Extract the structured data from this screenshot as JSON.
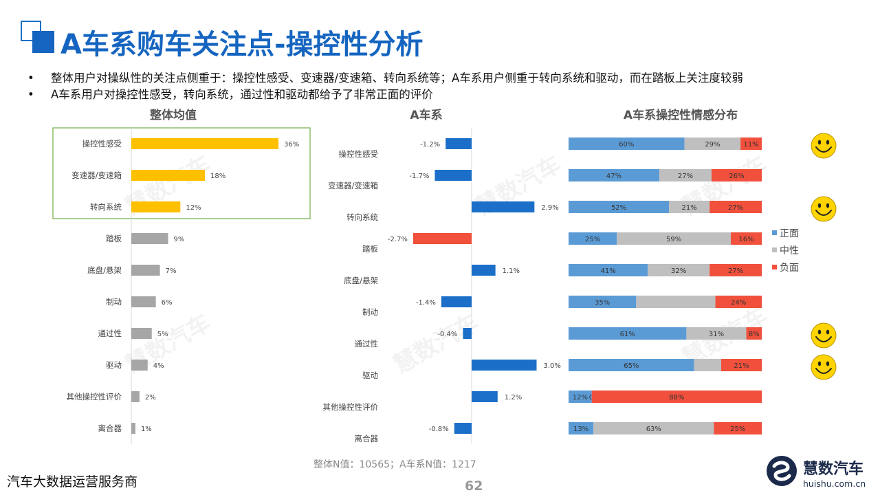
{
  "title": "A车系购车关注点-操控性分析",
  "bullets": [
    "整体用户对操纵性的关注点侧重于：操控性感受、变速器/变速箱、转向系统等；A车系用户侧重于转向系统和驱动，而在踏板上关注度较弱",
    "A车系用户对操控性感受，转向系统，通过性和驱动都给予了非常正面的评价"
  ],
  "chart_titles": {
    "overall": "整体均值",
    "series_a": "A车系",
    "sentiment": "A车系操控性情感分布"
  },
  "footer": {
    "note": "整体N值：10565；A车系N值：1217",
    "left_text": "汽车大数据运营服务商",
    "page_number": "62",
    "brand_name": "慧数汽车",
    "brand_url": "huishu.com.cn"
  },
  "watermark": "慧数汽车",
  "colors": {
    "title_blue": "#1565c0",
    "highlight_bar": "#ffc000",
    "gray_bar": "#a6a6a6",
    "diff_positive": "#1c6fc8",
    "diff_negative": "#f0503c",
    "positive": "#5b9bd5",
    "neutral": "#bfbfbf",
    "negative": "#f0503c",
    "highlight_box": "#70ad47"
  },
  "chart_data": [
    {
      "type": "bar",
      "orientation": "horizontal",
      "title": "整体均值",
      "categories": [
        "操控性感受",
        "变速器/变速箱",
        "转向系统",
        "踏板",
        "底盘/悬架",
        "制动",
        "通过性",
        "驱动",
        "其他操控性评价",
        "离合器"
      ],
      "values": [
        36,
        18,
        12,
        9,
        7,
        6,
        5,
        4,
        2,
        1
      ],
      "value_labels": [
        "36%",
        "18%",
        "12%",
        "9%",
        "7%",
        "6%",
        "5%",
        "4%",
        "2%",
        "1%"
      ],
      "highlighted": [
        "操控性感受",
        "变速器/变速箱",
        "转向系统"
      ],
      "unit": "%"
    },
    {
      "type": "bar",
      "orientation": "horizontal",
      "title": "A车系",
      "categories": [
        "操控性感受",
        "变速器/变速箱",
        "转向系统",
        "踏板",
        "底盘/悬架",
        "制动",
        "通过性",
        "驱动",
        "其他操控性评价",
        "离合器"
      ],
      "values": [
        -1.2,
        -1.7,
        2.9,
        -2.7,
        1.1,
        -1.4,
        -0.4,
        3.0,
        1.2,
        -0.8
      ],
      "value_labels": [
        "-1.2%",
        "-1.7%",
        "2.9%",
        "-2.7%",
        "1.1%",
        "-1.4%",
        "-0.4%",
        "3.0%",
        "1.2%",
        "-0.8%"
      ],
      "unit": "%"
    },
    {
      "type": "bar",
      "orientation": "horizontal",
      "stacked": true,
      "title": "A车系操控性情感分布",
      "categories": [
        "操控性感受",
        "变速器/变速箱",
        "转向系统",
        "踏板",
        "底盘/悬架",
        "制动",
        "通过性",
        "驱动",
        "其他操控性评价",
        "离合器"
      ],
      "series": [
        {
          "name": "正面",
          "values": [
            60,
            47,
            52,
            25,
            41,
            35,
            61,
            65,
            12,
            13
          ],
          "labels": [
            "60%",
            "47%",
            "52%",
            "25%",
            "41%",
            "35%",
            "61%",
            "65%",
            "12%",
            "13%"
          ]
        },
        {
          "name": "中性",
          "values": [
            29,
            27,
            21,
            59,
            32,
            41,
            31,
            14,
            0,
            63
          ],
          "labels": [
            "29%",
            "27%",
            "21%",
            "59%",
            "32%",
            "",
            "31%",
            "",
            "0%",
            "63%"
          ]
        },
        {
          "name": "负面",
          "values": [
            11,
            26,
            27,
            16,
            27,
            24,
            8,
            21,
            88,
            25
          ],
          "labels": [
            "11%",
            "26%",
            "27%",
            "16%",
            "27%",
            "24%",
            "8%",
            "21%",
            "88%",
            "25%"
          ]
        }
      ],
      "legend": [
        "正面",
        "中性",
        "负面"
      ],
      "legend_position": "right",
      "smiley_rows": [
        "操控性感受",
        "转向系统",
        "通过性",
        "驱动"
      ],
      "unit": "%"
    }
  ]
}
